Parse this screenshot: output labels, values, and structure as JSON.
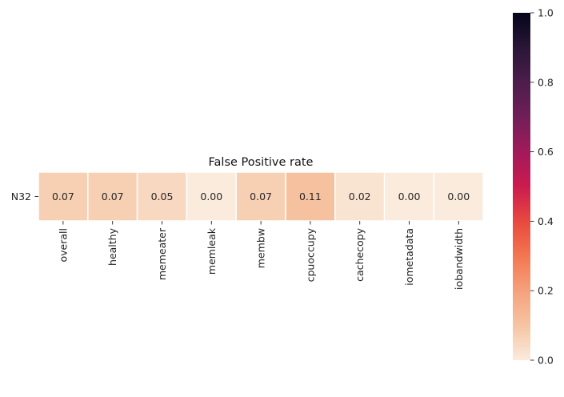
{
  "chart_data": {
    "type": "heatmap",
    "title": "False Positive rate",
    "xlabel": "",
    "ylabel": "",
    "rows": [
      "N32"
    ],
    "columns": [
      "overall",
      "healthy",
      "memeater",
      "memleak",
      "membw",
      "cpuoccupy",
      "cachecopy",
      "iometadata",
      "iobandwidth"
    ],
    "values": [
      [
        0.07,
        0.07,
        0.05,
        0.0,
        0.07,
        0.11,
        0.02,
        0.0,
        0.0
      ]
    ],
    "value_format": "0.00",
    "colorbar": {
      "min": 0.0,
      "max": 1.0,
      "ticks": [
        "0.0",
        "0.2",
        "0.4",
        "0.6",
        "0.8",
        "1.0"
      ],
      "colormap": "rocket_r"
    },
    "grid": false,
    "legend": "colorbar-right"
  }
}
